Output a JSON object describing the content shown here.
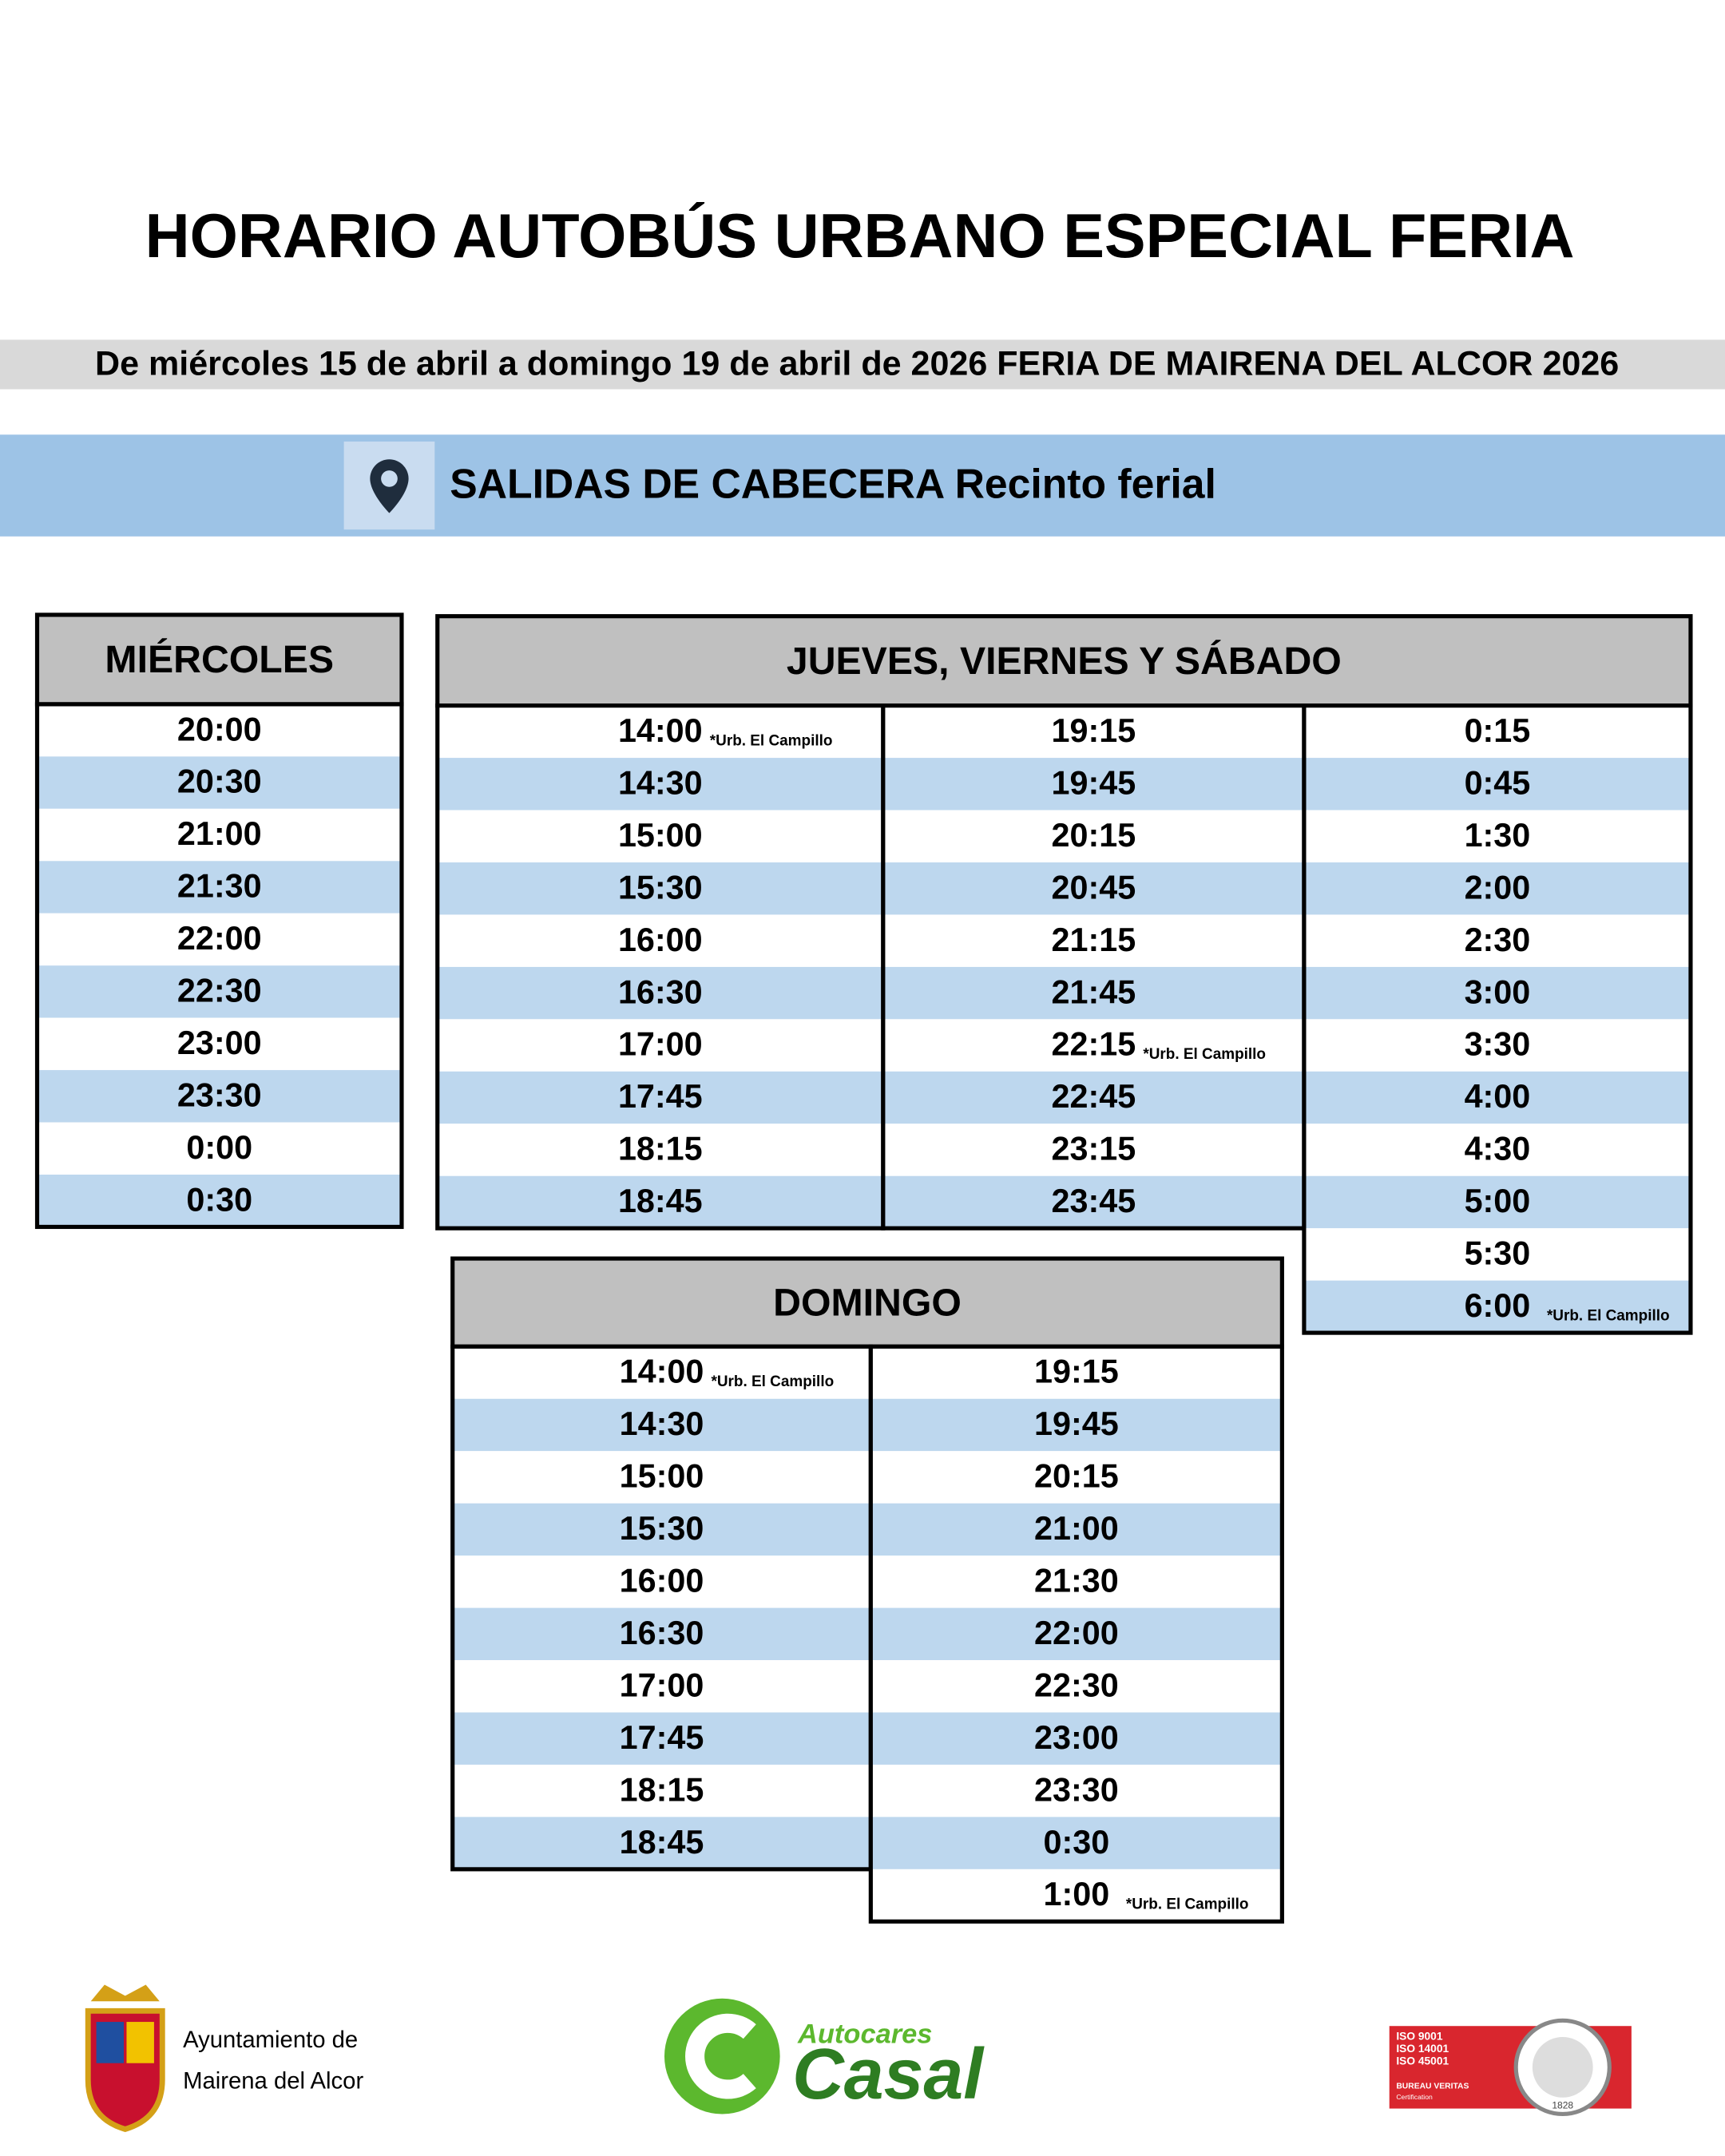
{
  "header": {
    "title": "HORARIO AUTOBÚS URBANO ESPECIAL FERIA",
    "subtitle": "De miércoles 15 de abril a domingo 19 de abril de 2026  FERIA DE MAIRENA DEL ALCOR 2026",
    "stop": "SALIDAS DE CABECERA Recinto ferial"
  },
  "tables": [
    {
      "title": "MIÉRCOLES",
      "columns": [
        [
          "20:00",
          "20:30",
          "21:00",
          "21:30",
          "22:00",
          "22:30",
          "23:00",
          "23:30",
          "0:00",
          "0:30"
        ]
      ]
    },
    {
      "title": "JUEVES, VIERNES Y SÁBADO",
      "columns": [
        [
          {
            "time": "14:00",
            "note": "*Urb. El Campillo"
          },
          "14:30",
          "15:00",
          "15:30",
          "16:00",
          "16:30",
          "17:00",
          "17:45",
          "18:15",
          "18:45"
        ],
        [
          "19:15",
          "19:45",
          "20:15",
          "20:45",
          "21:15",
          "21:45",
          {
            "time": "22:15",
            "note": "*Urb. El Campillo"
          },
          "22:45",
          "23:15",
          "23:45"
        ],
        [
          "0:15",
          "0:45",
          "1:30",
          "2:00",
          "2:30",
          "3:00",
          "3:30",
          "4:00",
          "4:30",
          "5:00",
          "5:30",
          {
            "time": "6:00",
            "note": "*Urb. El Campillo"
          }
        ]
      ]
    },
    {
      "title": "DOMINGO",
      "columns": [
        [
          {
            "time": "14:00",
            "note": "*Urb. El Campillo"
          },
          "14:30",
          "15:00",
          "15:30",
          "16:00",
          "16:30",
          "17:00",
          "17:45",
          "18:15",
          "18:45"
        ],
        [
          "19:15",
          "19:45",
          "20:15",
          "21:00",
          "21:30",
          "22:00",
          "22:30",
          "23:00",
          "23:30",
          "0:30",
          {
            "time": "1:00",
            "note": "*Urb. El Campillo"
          }
        ]
      ]
    }
  ],
  "footer": {
    "council": [
      "Ayuntamiento de",
      "Mairena del Alcor"
    ],
    "company": {
      "small": "Autocares",
      "big": "Casal"
    },
    "certification": {
      "lines": [
        "ISO 9001",
        "ISO 14001",
        "ISO 45001"
      ],
      "brand": "BUREAU VERITAS",
      "sub": "Certification",
      "year": "1828"
    }
  }
}
